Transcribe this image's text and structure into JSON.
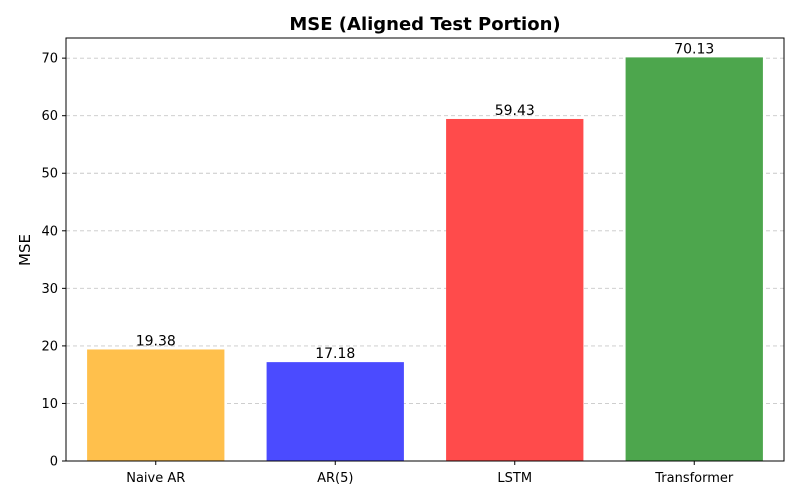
{
  "chart_data": {
    "type": "bar",
    "title": "MSE (Aligned Test Portion)",
    "xlabel": "",
    "ylabel": "MSE",
    "categories": [
      "Naive AR",
      "AR(5)",
      "LSTM",
      "Transformer"
    ],
    "values": [
      19.38,
      17.18,
      59.43,
      70.13
    ],
    "value_labels": [
      "19.38",
      "17.18",
      "59.43",
      "70.13"
    ],
    "colors": [
      "#FFC04C",
      "#4B4BFF",
      "#FF4B4B",
      "#4DA64D"
    ],
    "ylim": [
      0,
      73.5
    ],
    "yticks": [
      0,
      10,
      20,
      30,
      40,
      50,
      60,
      70
    ],
    "grid": "y-dashed",
    "legend": "none"
  }
}
